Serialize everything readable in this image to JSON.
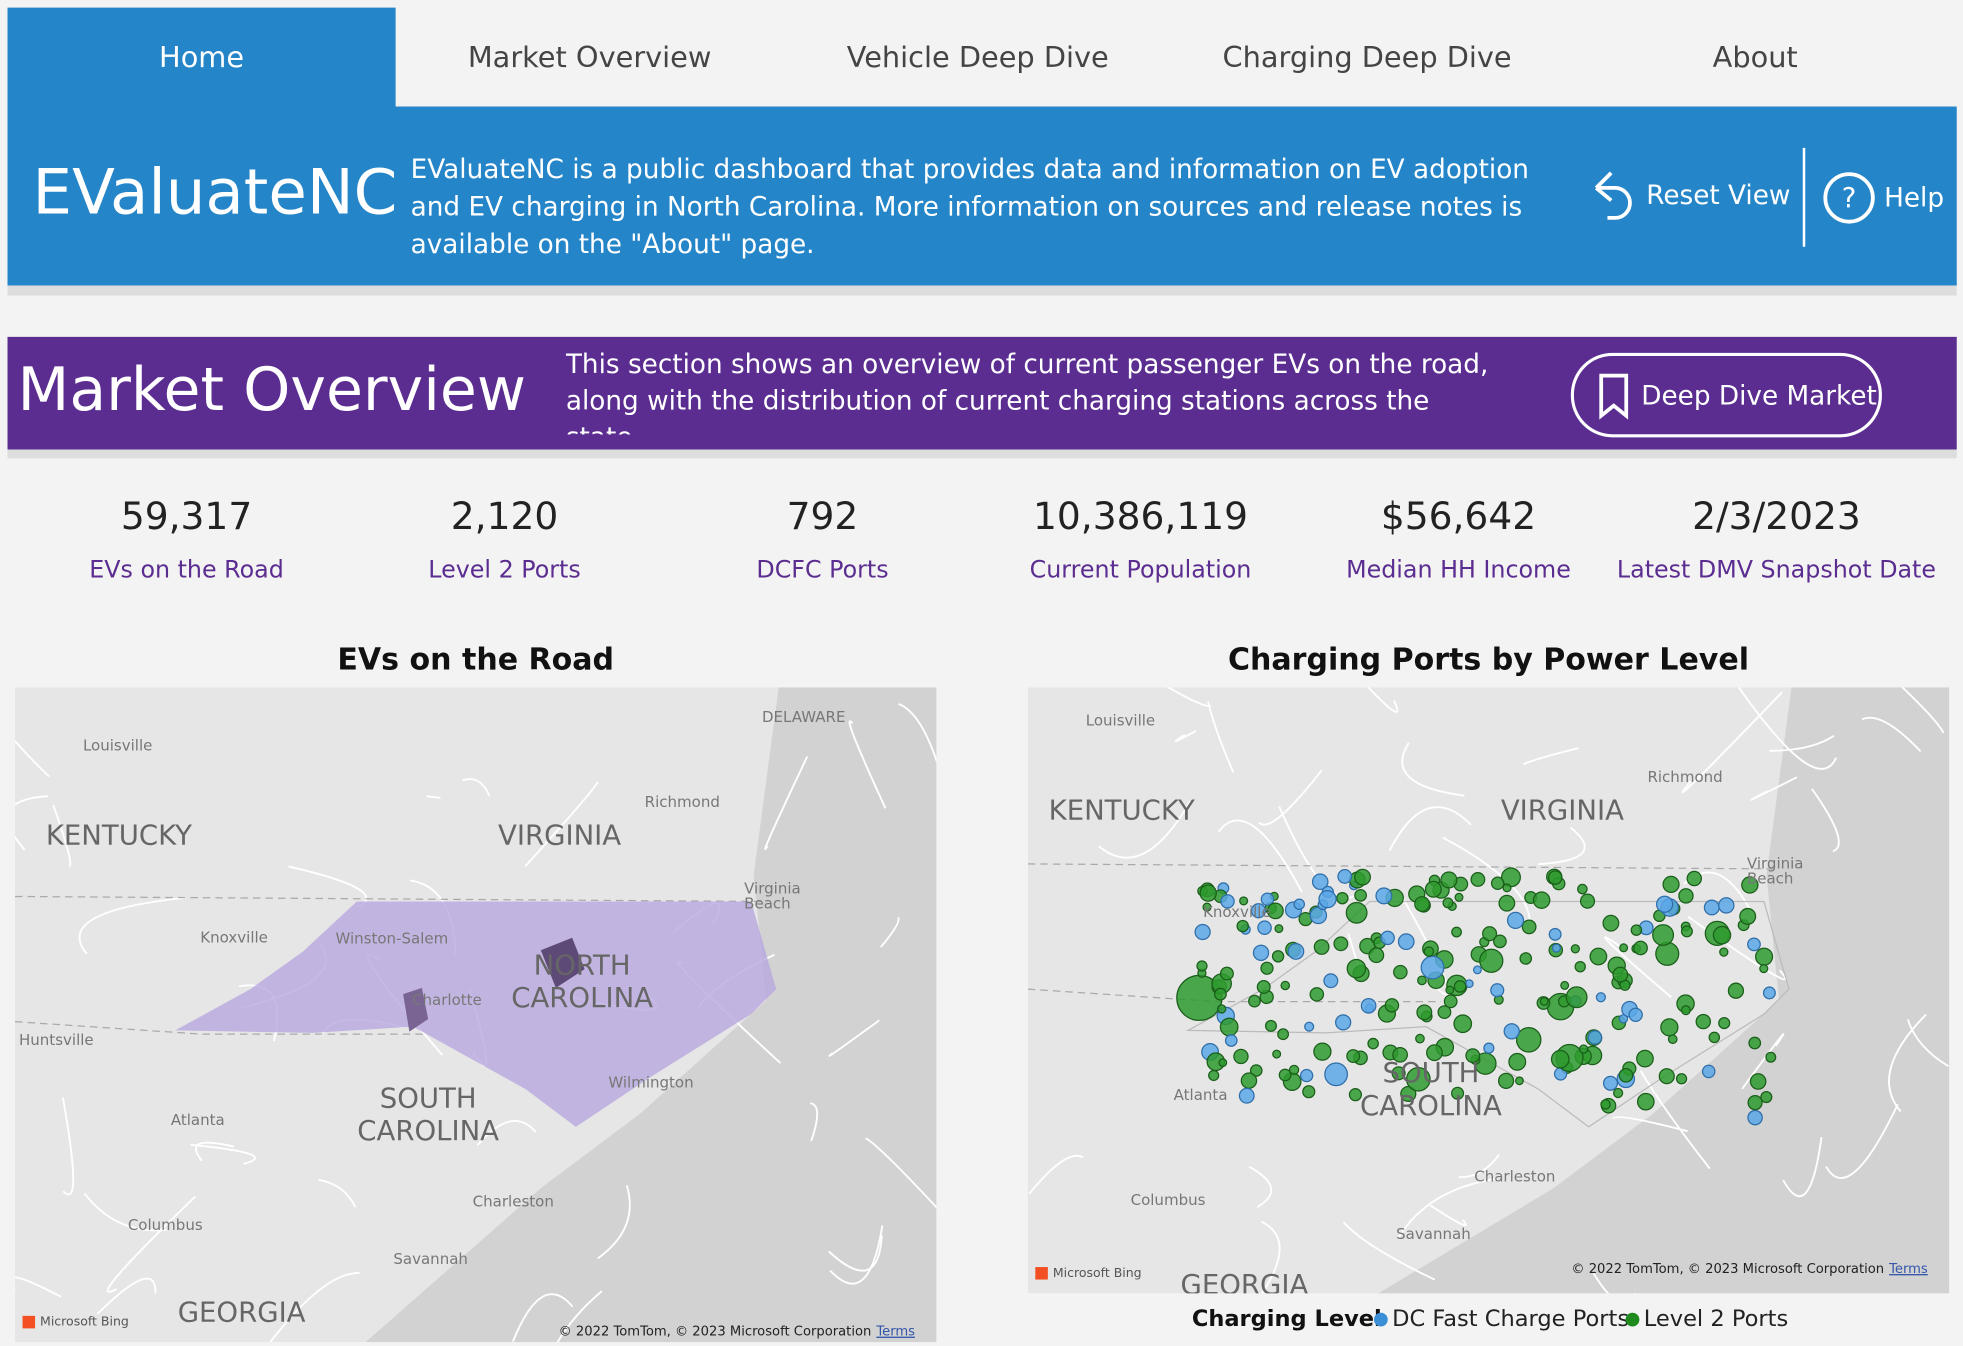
{
  "nav": [
    "Home",
    "Market Overview",
    "Vehicle Deep Dive",
    "Charging Deep Dive",
    "About"
  ],
  "header": {
    "title": "EValuateNC",
    "description": "EValuateNC is a public dashboard that provides data and information on EV adoption and EV charging in North Carolina. More information on sources and release notes is available on the \"About\" page.",
    "reset": "Reset View",
    "help": "Help"
  },
  "section": {
    "title": "Market Overview",
    "description": "This section shows an overview of current passenger EVs on the road, along with the distribution of current charging stations across the state.",
    "button": "Deep Dive Market"
  },
  "kpis": [
    {
      "value": "59,317",
      "label": "EVs on the Road"
    },
    {
      "value": "2,120",
      "label": "Level 2 Ports"
    },
    {
      "value": "792",
      "label": "DCFC Ports"
    },
    {
      "value": "10,386,119",
      "label": "Current Population"
    },
    {
      "value": "$56,642",
      "label": "Median HH Income"
    },
    {
      "value": "2/3/2023",
      "label": "Latest DMV Snapshot Date"
    }
  ],
  "maps": [
    {
      "title": "EVs on the Road",
      "labels": [
        "KENTUCKY",
        "VIRGINIA",
        "NORTH",
        "CAROLINA",
        "SOUTH",
        "CAROLINA",
        "GEORGIA",
        "DELAWARE",
        "Louisville",
        "Richmond",
        "Virginia",
        "Beach",
        "Knoxville",
        "Winston-Salem",
        "Charlotte",
        "Huntsville",
        "Wilmington",
        "Atlanta",
        "Charleston",
        "Columbus",
        "Savannah"
      ],
      "brand": "Microsoft Bing",
      "attribution": "© 2022 TomTom, © 2023 Microsoft Corporation",
      "terms": "Terms"
    },
    {
      "title": "Charging Ports by Power Level",
      "labels": [
        "KENTUCKY",
        "VIRGINIA",
        "SOUTH",
        "CAROLINA",
        "GEORGIA",
        "Louisville",
        "Richmond",
        "Virginia",
        "Beach",
        "Knoxville",
        "Atlanta",
        "Charleston",
        "Columbus",
        "Savannah"
      ],
      "brand": "Microsoft Bing",
      "attribution": "© 2022 TomTom, © 2023 Microsoft Corporation",
      "terms": "Terms",
      "legend": {
        "title": "Charging Level",
        "items": [
          {
            "name": "DC Fast Charge Ports",
            "color": "#3a8fd6"
          },
          {
            "name": "Level 2 Ports",
            "color": "#1e8a1e"
          }
        ]
      }
    }
  ]
}
